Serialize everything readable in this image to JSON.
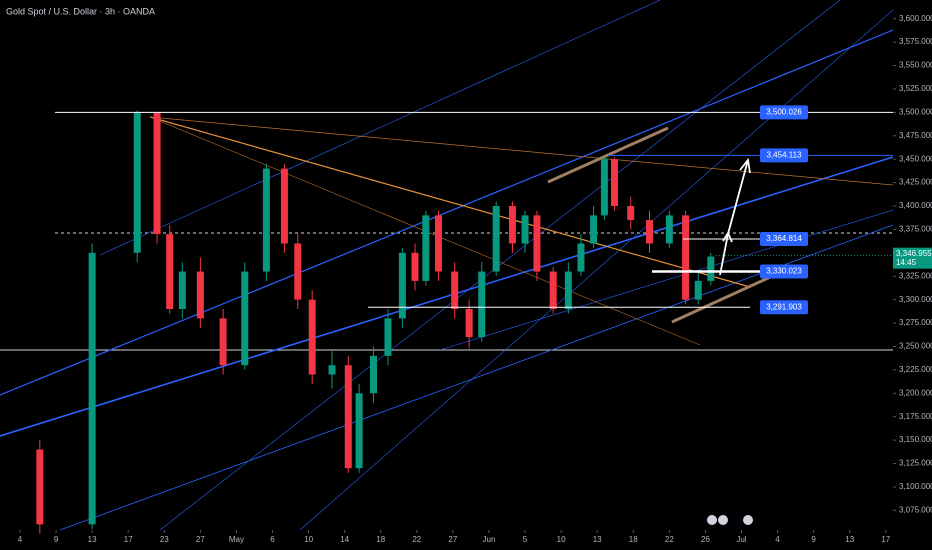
{
  "chart_data": {
    "type": "candlestick",
    "title": "Gold Spot / U.S. Dollar · 3h · OANDA",
    "up_color": "#089981",
    "down_color": "#f23645",
    "xlim": [
      -0.554,
      24.2
    ],
    "ylim": [
      3054,
      3620
    ],
    "xticks": [
      {
        "value": 0,
        "label": "4"
      },
      {
        "value": 1,
        "label": "9"
      },
      {
        "value": 2,
        "label": "13"
      },
      {
        "value": 3,
        "label": "17"
      },
      {
        "value": 4,
        "label": "23"
      },
      {
        "value": 5,
        "label": "27"
      },
      {
        "value": 6,
        "label": "May"
      },
      {
        "value": 7,
        "label": "6"
      },
      {
        "value": 8,
        "label": "10"
      },
      {
        "value": 9,
        "label": "14"
      },
      {
        "value": 10,
        "label": "18"
      },
      {
        "value": 11,
        "label": "22"
      },
      {
        "value": 12,
        "label": "27"
      },
      {
        "value": 13,
        "label": "Jun"
      },
      {
        "value": 14,
        "label": "5"
      },
      {
        "value": 15,
        "label": "10"
      },
      {
        "value": 16,
        "label": "13"
      },
      {
        "value": 17,
        "label": "18"
      },
      {
        "value": 18,
        "label": "22"
      },
      {
        "value": 19,
        "label": "26"
      },
      {
        "value": 20,
        "label": "Jul"
      },
      {
        "value": 21,
        "label": "4"
      },
      {
        "value": 22,
        "label": "9"
      },
      {
        "value": 23,
        "label": "13"
      },
      {
        "value": 24,
        "label": "17"
      }
    ],
    "yticks": [
      {
        "value": 3600,
        "label": "3,600.000"
      },
      {
        "value": 3575,
        "label": "3,575.000"
      },
      {
        "value": 3550,
        "label": "3,550.000"
      },
      {
        "value": 3525,
        "label": "3,525.000"
      },
      {
        "value": 3500,
        "label": "3,500.000"
      },
      {
        "value": 3475,
        "label": "3,475.000"
      },
      {
        "value": 3450,
        "label": "3,450.000"
      },
      {
        "value": 3425,
        "label": "3,425.000"
      },
      {
        "value": 3400,
        "label": "3,400.000"
      },
      {
        "value": 3375,
        "label": "3,375.000"
      },
      {
        "value": 3350,
        "label": "3,350.000"
      },
      {
        "value": 3325,
        "label": "3,325.000"
      },
      {
        "value": 3300,
        "label": "3,300.000"
      },
      {
        "value": 3275,
        "label": "3,275.000"
      },
      {
        "value": 3250,
        "label": "3,250.000"
      },
      {
        "value": 3225,
        "label": "3,225.000"
      },
      {
        "value": 3200,
        "label": "3,200.000"
      },
      {
        "value": 3175,
        "label": "3,175.000"
      },
      {
        "value": 3150,
        "label": "3,150.000"
      },
      {
        "value": 3125,
        "label": "3,125.000"
      },
      {
        "value": 3100,
        "label": "3,100.000"
      },
      {
        "value": 3075,
        "label": "3,075.000"
      }
    ],
    "candles": {
      "x": [
        0.55,
        2.0,
        3.25,
        3.8,
        4.15,
        4.5,
        5.0,
        5.63,
        6.23,
        6.83,
        7.33,
        7.7,
        8.1,
        8.65,
        9.1,
        9.4,
        9.8,
        10.2,
        10.6,
        10.95,
        11.25,
        11.6,
        12.05,
        12.45,
        12.8,
        13.2,
        13.65,
        14.0,
        14.33,
        14.78,
        15.2,
        15.55,
        15.9,
        16.2,
        16.48,
        16.93,
        17.45,
        18.0,
        18.45,
        18.8,
        19.15
      ],
      "open": [
        3140,
        3060,
        3350,
        3500,
        3370,
        3290,
        3330,
        3280,
        3230,
        3330,
        3440,
        3360,
        3300,
        3220,
        3230,
        3120,
        3200,
        3240,
        3280,
        3350,
        3320,
        3390,
        3330,
        3290,
        3260,
        3330,
        3400,
        3360,
        3390,
        3330,
        3290,
        3330,
        3360,
        3390,
        3450,
        3400,
        3385,
        3360,
        3390,
        3300,
        3320
      ],
      "high": [
        3150,
        3360,
        3502,
        3500,
        3380,
        3340,
        3345,
        3290,
        3340,
        3445,
        3445,
        3370,
        3310,
        3245,
        3240,
        3210,
        3250,
        3290,
        3355,
        3360,
        3395,
        3395,
        3340,
        3300,
        3340,
        3405,
        3405,
        3395,
        3395,
        3335,
        3340,
        3370,
        3400,
        3452,
        3452,
        3410,
        3395,
        3395,
        3395,
        3330,
        3350
      ],
      "low": [
        3050,
        3055,
        3340,
        3360,
        3285,
        3280,
        3270,
        3220,
        3225,
        3320,
        3350,
        3290,
        3210,
        3205,
        3115,
        3115,
        3190,
        3230,
        3270,
        3310,
        3315,
        3320,
        3280,
        3248,
        3255,
        3325,
        3350,
        3350,
        3320,
        3285,
        3285,
        3325,
        3355,
        3385,
        3395,
        3375,
        3350,
        3355,
        3295,
        3295,
        3315
      ],
      "close": [
        3060,
        3350,
        3500,
        3370,
        3290,
        3330,
        3280,
        3230,
        3330,
        3440,
        3360,
        3300,
        3220,
        3230,
        3120,
        3200,
        3240,
        3280,
        3350,
        3320,
        3390,
        3330,
        3290,
        3260,
        3330,
        3400,
        3360,
        3390,
        3330,
        3290,
        3330,
        3360,
        3390,
        3450,
        3400,
        3385,
        3360,
        3390,
        3300,
        3320,
        3346
      ]
    },
    "levels": [
      {
        "value": 3500.026,
        "label": "3,500.026"
      },
      {
        "value": 3454.113,
        "label": "3,454.113"
      },
      {
        "value": 3364.814,
        "label": "3,364.814"
      },
      {
        "value": 3330.023,
        "label": "3,330.023"
      },
      {
        "value": 3291.903,
        "label": "3,291.903"
      }
    ],
    "level_color": "#2962ff",
    "current_price": {
      "value": 3346.955,
      "label": "3,346.955",
      "time": "14:45",
      "color": "#089981"
    }
  }
}
